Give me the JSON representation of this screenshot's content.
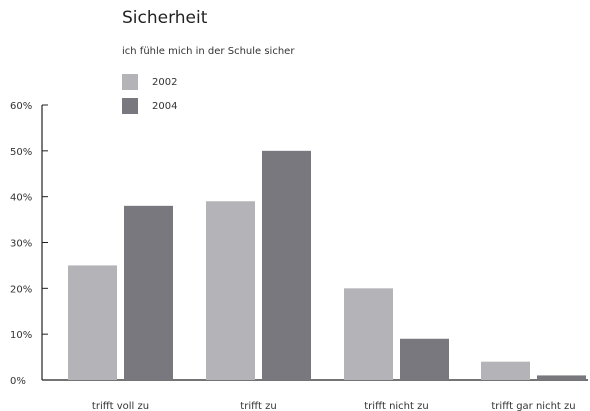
{
  "chart_data": {
    "type": "bar",
    "title": "Sicherheit",
    "subtitle": "ich fühle mich in der Schule sicher",
    "categories": [
      "trifft voll zu",
      "trifft zu",
      "trifft nicht zu",
      "trifft gar nicht zu"
    ],
    "series": [
      {
        "name": "2002",
        "color": "#b4b3b8",
        "values": [
          25,
          39,
          20,
          4
        ]
      },
      {
        "name": "2004",
        "color": "#7a787f",
        "values": [
          38,
          50,
          9,
          1
        ]
      }
    ],
    "yticks": [
      "0%",
      "10%",
      "20%",
      "30%",
      "40%",
      "50%",
      "60%"
    ],
    "ylim": [
      0,
      60
    ],
    "unit": "%",
    "legend_position": "top-left",
    "grid": false
  }
}
